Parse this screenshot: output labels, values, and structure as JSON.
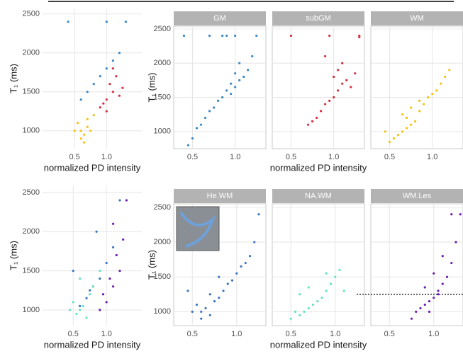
{
  "chart_data": [
    {
      "type": "scatter",
      "y_label": "T₁ (ms)",
      "x_label": "normalized PD intensity",
      "xlim": [
        0,
        1.55
      ],
      "ylim": [
        770,
        2570
      ],
      "xticks": [
        0.5,
        {
          "value": 1,
          "label": "1.0"
        }
      ],
      "yticks": [
        1000,
        1500,
        2000,
        2500
      ],
      "show_yticklabels": true,
      "grid": true,
      "series": [
        {
          "color": "#3a88c4",
          "x": [
            0.9,
            1.0,
            1.1,
            0.8,
            0.7,
            1.2,
            0.6,
            1.0,
            0.4,
            1.3
          ],
          "values": [
            1700,
            1800,
            1900,
            1600,
            1500,
            2000,
            1400,
            2400,
            2400,
            2400
          ]
        },
        {
          "color": "#d62e3e",
          "x": [
            1.0,
            1.1,
            1.05,
            0.95,
            1.15,
            1.2,
            0.9,
            1.1,
            1.0,
            1.25
          ],
          "values": [
            1400,
            1500,
            1600,
            1350,
            1700,
            1450,
            1300,
            1800,
            1250,
            1550
          ]
        },
        {
          "color": "#f4c20d",
          "x": [
            0.6,
            0.65,
            0.7,
            0.55,
            0.75,
            0.6,
            0.7,
            0.5,
            0.8,
            0.65
          ],
          "values": [
            1000,
            950,
            1050,
            1100,
            1000,
            900,
            1150,
            1000,
            1200,
            850
          ]
        }
      ]
    },
    {
      "type": "scatter",
      "title": "GM",
      "y_label": "T₁ (ms)",
      "xlim": [
        0.28,
        1.36
      ],
      "ylim": [
        750,
        2540
      ],
      "xticks": [
        0.5,
        {
          "value": 1,
          "label": "1.0"
        }
      ],
      "yticks": [
        1000,
        1500,
        2000,
        2500
      ],
      "show_yticklabels": true,
      "grid": true,
      "series": [
        {
          "color": "#3a88c4",
          "x": [
            0.95,
            1.0,
            1.05,
            0.9,
            1.1,
            0.85,
            1.0,
            0.8,
            1.15,
            0.95,
            0.75,
            1.05,
            0.7,
            1.2,
            0.65,
            0.9,
            1.0,
            0.6,
            0.5,
            0.55,
            0.4,
            0.7,
            0.85,
            1.25,
            0.45
          ],
          "values": [
            1700,
            1650,
            1750,
            1600,
            1800,
            1500,
            1850,
            1450,
            1900,
            1550,
            1350,
            2000,
            1300,
            2100,
            1200,
            2400,
            2400,
            1100,
            900,
            1050,
            2400,
            2400,
            2400,
            2400,
            800
          ]
        }
      ]
    },
    {
      "type": "scatter",
      "title": "subGM",
      "x_label": "normalized PD intensity",
      "xlim": [
        0.28,
        1.36
      ],
      "ylim": [
        750,
        2540
      ],
      "xticks": [
        0.5,
        {
          "value": 1,
          "label": "1.0"
        }
      ],
      "yticks": [
        1000,
        1500,
        2000,
        2500
      ],
      "show_yticklabels": false,
      "grid": true,
      "series": [
        {
          "color": "#d62e3e",
          "x": [
            1.0,
            1.05,
            1.1,
            0.95,
            1.0,
            0.9,
            1.15,
            0.85,
            1.2,
            1.05,
            0.8,
            1.1,
            0.75,
            1.25,
            0.7,
            0.95,
            1.3,
            0.9,
            0.5,
            1.3
          ],
          "values": [
            1500,
            1600,
            1700,
            1450,
            1800,
            1400,
            1750,
            1300,
            1650,
            1900,
            1200,
            2000,
            1150,
            1850,
            1100,
            2400,
            2400,
            2100,
            2400,
            2380
          ]
        }
      ]
    },
    {
      "type": "scatter",
      "title": "WM",
      "xlim": [
        0.28,
        1.36
      ],
      "ylim": [
        750,
        2540
      ],
      "xticks": [
        0.5,
        {
          "value": 1,
          "label": "1.0"
        }
      ],
      "yticks": [
        1000,
        1500,
        2000,
        2500
      ],
      "show_yticklabels": false,
      "grid": true,
      "series": [
        {
          "color": "#f4c20d",
          "x": [
            0.65,
            0.7,
            0.75,
            0.6,
            0.8,
            0.55,
            0.7,
            0.85,
            0.9,
            0.5,
            0.95,
            1.0,
            1.05,
            0.75,
            1.1,
            0.65,
            1.15,
            1.2,
            0.85,
            0.45
          ],
          "values": [
            1000,
            1050,
            1100,
            950,
            1150,
            900,
            1200,
            1300,
            1400,
            850,
            1500,
            1550,
            1600,
            1350,
            1700,
            1250,
            1800,
            1900,
            1450,
            1000
          ]
        }
      ]
    },
    {
      "type": "scatter",
      "y_label": "T₁ (ms)",
      "x_label": "normalized PD intensity",
      "xlim": [
        0.04,
        1.53
      ],
      "ylim": [
        800,
        2590
      ],
      "xticks": [
        0.5,
        {
          "value": 1,
          "label": "1.0"
        }
      ],
      "yticks": [
        1000,
        1500,
        2000,
        2500
      ],
      "show_yticklabels": true,
      "grid": true,
      "series": [
        {
          "color": "#3b75c0",
          "x": [
            0.6,
            0.7,
            0.8,
            0.9,
            1.0,
            0.5,
            1.1,
            0.75,
            1.2,
            0.85
          ],
          "values": [
            1050,
            1150,
            1300,
            1400,
            1600,
            1500,
            1800,
            1250,
            2400,
            2000
          ]
        },
        {
          "color": "#62e3c5",
          "x": [
            0.55,
            0.6,
            0.65,
            0.7,
            0.5,
            0.75,
            0.8,
            0.6,
            0.9,
            0.45
          ],
          "values": [
            950,
            1000,
            1050,
            900,
            1100,
            1200,
            1300,
            1400,
            1500,
            1000
          ]
        },
        {
          "color": "#6b1db2",
          "x": [
            0.9,
            1.0,
            1.1,
            1.2,
            0.95,
            1.05,
            1.15,
            1.25,
            1.3,
            1.1
          ],
          "values": [
            1000,
            1100,
            1300,
            1500,
            1200,
            1400,
            1700,
            1900,
            2400,
            2100
          ]
        }
      ]
    },
    {
      "type": "scatter",
      "title": "He.WM",
      "y_label": "T₁ (ms)",
      "xlim": [
        0.29,
        1.33
      ],
      "ylim": [
        800,
        2550
      ],
      "xticks": [
        0.5,
        {
          "value": 1,
          "label": "1.0"
        }
      ],
      "yticks": [
        1000,
        1500,
        2000,
        2500
      ],
      "show_yticklabels": true,
      "grid": true,
      "series": [
        {
          "color": "#3b75c0",
          "x": [
            0.6,
            0.65,
            0.7,
            0.55,
            0.75,
            0.8,
            0.5,
            0.85,
            0.9,
            0.95,
            1.0,
            1.05,
            1.1,
            0.45,
            0.7,
            1.15,
            1.2,
            0.8,
            0.6,
            1.25
          ],
          "values": [
            1000,
            1050,
            950,
            1100,
            1150,
            1200,
            1000,
            1300,
            1400,
            1450,
            1550,
            1650,
            1700,
            1300,
            1250,
            1800,
            2000,
            1500,
            900,
            2400
          ]
        }
      ]
    },
    {
      "type": "scatter",
      "title": "NA.WM",
      "x_label": "normalized PD intensity",
      "xlim": [
        0.29,
        1.33
      ],
      "ylim": [
        800,
        2550
      ],
      "xticks": [
        0.5,
        {
          "value": 1,
          "label": "1.0"
        }
      ],
      "yticks": [
        1000,
        1500,
        2000,
        2500
      ],
      "show_yticklabels": false,
      "grid": true,
      "series": [
        {
          "color": "#62e3c5",
          "x": [
            0.6,
            0.65,
            0.7,
            0.55,
            0.75,
            0.8,
            0.85,
            0.9,
            0.95,
            1.0,
            0.6,
            1.05,
            0.7,
            0.5,
            0.9,
            1.1
          ],
          "values": [
            950,
            1000,
            1050,
            1000,
            1100,
            1150,
            1200,
            1300,
            1400,
            1500,
            1250,
            1600,
            1350,
            900,
            1550,
            1300
          ]
        }
      ]
    },
    {
      "type": "scatter",
      "title": "WM.Les",
      "xlim": [
        0.29,
        1.33
      ],
      "ylim": [
        800,
        2550
      ],
      "xticks": [
        0.5,
        {
          "value": 1,
          "label": "1.0"
        }
      ],
      "yticks": [
        1000,
        1500,
        2000,
        2500
      ],
      "show_yticklabels": false,
      "grid": true,
      "hline": 1250,
      "series": [
        {
          "color": "#6b1db2",
          "x": [
            0.8,
            0.85,
            0.9,
            0.95,
            1.0,
            1.05,
            1.1,
            1.15,
            0.9,
            1.0,
            1.2,
            0.75,
            1.1,
            0.95,
            1.25,
            1.2,
            1.3,
            1.05
          ],
          "values": [
            1000,
            1050,
            1100,
            1150,
            1200,
            1300,
            1400,
            1500,
            1350,
            1550,
            1700,
            900,
            1800,
            1000,
            2000,
            2400,
            2400,
            1250
          ]
        }
      ]
    }
  ]
}
